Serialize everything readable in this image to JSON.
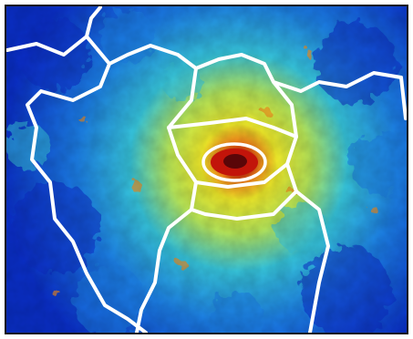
{
  "map": {
    "style": "heatmap",
    "colormap": {
      "low": "#0a2fc8",
      "lowmid": "#1c7fe6",
      "mid": "#37c6dd",
      "midhigh": "#b8e85a",
      "high": "#f2ec2a",
      "veryhigh": "#f28a1b",
      "peak": "#c2140a",
      "extreme": "#5a0608"
    },
    "boundary_color": "#ffffff",
    "frame_color": "#1a1a1a",
    "icons": [
      "heatmap-field",
      "hotspot-core",
      "boundary-lines"
    ]
  }
}
